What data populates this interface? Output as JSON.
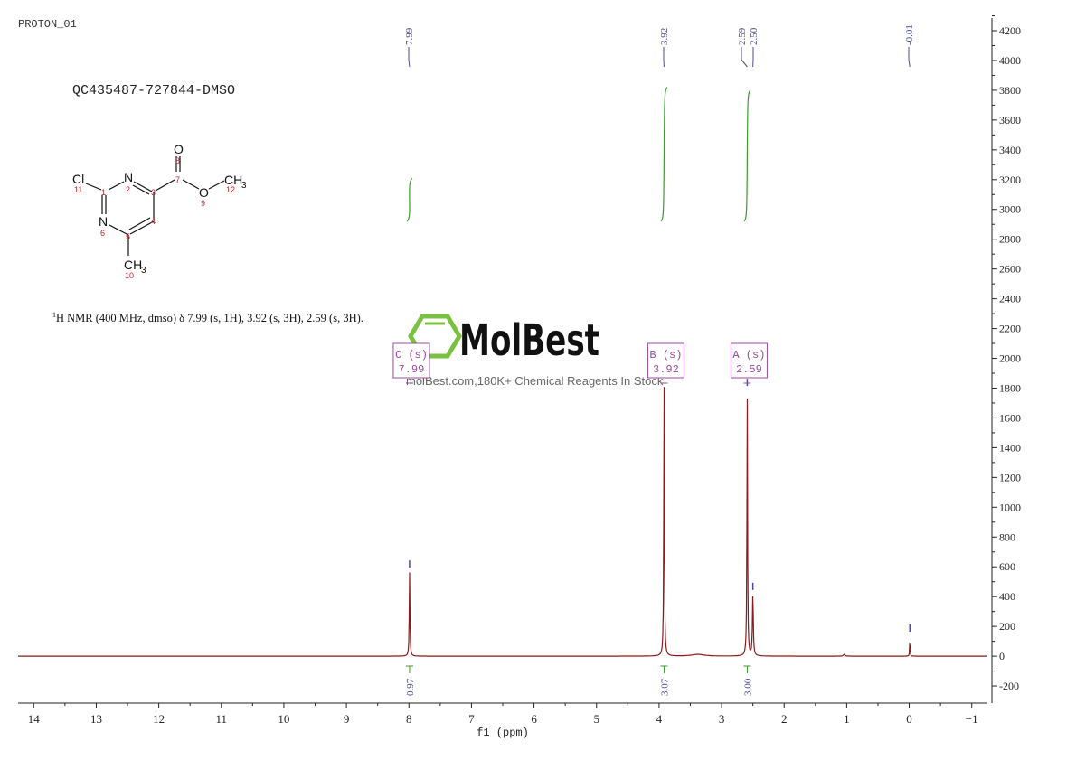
{
  "header": {
    "experiment": "PROTON_01",
    "sample_id": "QC435487-727844-DMSO",
    "nmr_description_sup": "1",
    "nmr_description": "H NMR (400 MHz, dmso) δ 7.99 (s, 1H), 3.92 (s, 3H), 2.59 (s, 3H)."
  },
  "structure": {
    "atoms": [
      "Cl",
      "N",
      "N",
      "O",
      "O",
      "CH",
      "3",
      "CH",
      "3"
    ],
    "numbers": [
      "1",
      "2",
      "3",
      "4",
      "5",
      "6",
      "7",
      "8",
      "9",
      "10",
      "11",
      "12"
    ]
  },
  "watermark": {
    "brand": "MolBest",
    "tagline": "molBest.com,180K+ Chemical Reagents In Stock"
  },
  "colors": {
    "spectrum": "#8b1a1a",
    "integral": "#3a9a2a",
    "peak_label": "#4a4a9a",
    "multiplet_box": "#9a4aa0",
    "logo_green": "#7ac142"
  },
  "chart_data": {
    "type": "line",
    "xlabel": "f1 (ppm)",
    "xlim": [
      14.25,
      -1.25
    ],
    "ylim": [
      -315,
      4285
    ],
    "x_reversed": true,
    "y_axis_side": "right",
    "grid": false,
    "xticks": [
      14,
      13,
      12,
      11,
      10,
      9,
      8,
      7,
      6,
      5,
      4,
      3,
      2,
      1,
      0,
      -1
    ],
    "xtick_labels": [
      "14",
      "13",
      "12",
      "11",
      "10",
      "9",
      "8",
      "7",
      "6",
      "5",
      "4",
      "3",
      "2",
      "1",
      "0",
      "−1"
    ],
    "yticks": [
      -200,
      0,
      200,
      400,
      600,
      800,
      1000,
      1200,
      1400,
      1600,
      1800,
      2000,
      2200,
      2400,
      2600,
      2800,
      3000,
      3200,
      3400,
      3600,
      3800,
      4000,
      4200
    ],
    "ytick_labels": [
      "-200",
      "0",
      "200",
      "400",
      "600",
      "800",
      "1000",
      "1200",
      "1400",
      "1600",
      "1800",
      "2000",
      "2200",
      "2400",
      "2600",
      "2800",
      "3000",
      "3200",
      "3400",
      "3600",
      "3800",
      "4000",
      "4200"
    ],
    "peaks": [
      {
        "ppm": 7.99,
        "height": 570,
        "width": 0.006
      },
      {
        "ppm": 3.92,
        "height": 1850,
        "width": 0.006
      },
      {
        "ppm": 2.59,
        "height": 1790,
        "width": 0.006
      },
      {
        "ppm": 2.5,
        "height": 420,
        "width": 0.008
      },
      {
        "ppm": -0.01,
        "height": 140,
        "width": 0.004
      },
      {
        "ppm": 3.38,
        "height": 12,
        "width": 0.12
      },
      {
        "ppm": 1.04,
        "height": 12,
        "width": 0.015
      }
    ],
    "peak_labels": [
      "7.99",
      "3.92",
      "2.59",
      "2.50",
      "-0.01"
    ],
    "multiplets": [
      {
        "letter": "C (s)",
        "shift": "7.99",
        "ppm": 7.99
      },
      {
        "letter": "B (s)",
        "shift": "3.92",
        "ppm": 3.92
      },
      {
        "letter": "A (s)",
        "shift": "2.59",
        "ppm": 2.59
      }
    ],
    "integrals": [
      {
        "ppm_from": 8.03,
        "ppm_to": 7.95,
        "value": "0.97",
        "rise": 290
      },
      {
        "ppm_from": 3.97,
        "ppm_to": 3.87,
        "value": "3.07",
        "rise": 900
      },
      {
        "ppm_from": 2.64,
        "ppm_to": 2.54,
        "value": "3.00",
        "rise": 880
      }
    ]
  }
}
